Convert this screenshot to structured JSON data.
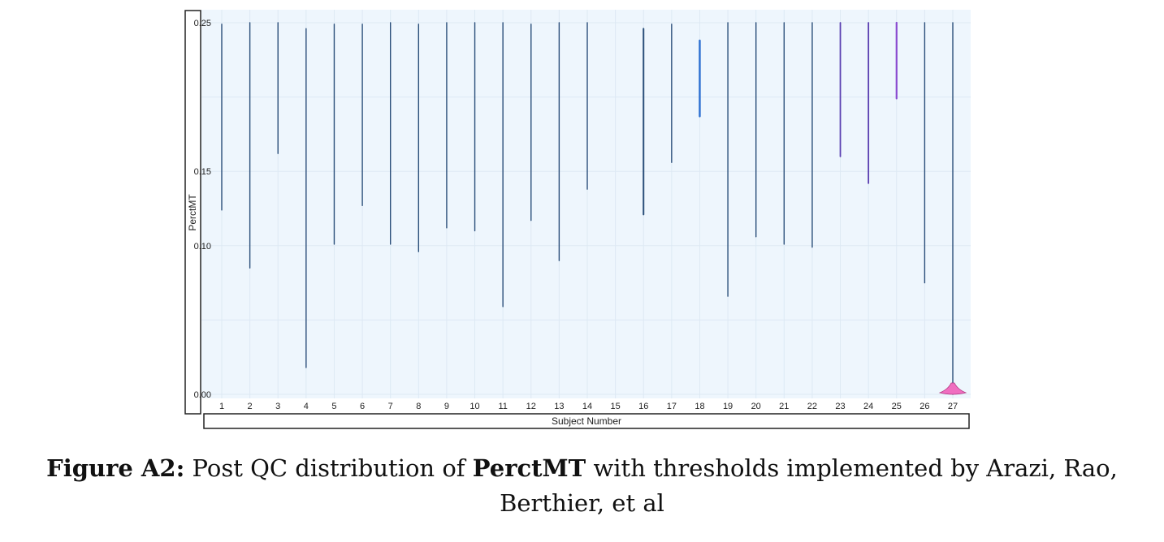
{
  "chart_data": {
    "type": "violin",
    "ylabel": "PerctMT",
    "xlabel": "Subject Number",
    "ylim": [
      0.0,
      0.25
    ],
    "y_ticks": [
      "0.00",
      "0.10",
      "0.15",
      "0.25"
    ],
    "y_tick_values": [
      0.0,
      0.1,
      0.15,
      0.25
    ],
    "grid": true,
    "categories": [
      "1",
      "2",
      "3",
      "4",
      "5",
      "6",
      "7",
      "8",
      "9",
      "10",
      "11",
      "12",
      "13",
      "14",
      "15",
      "16",
      "17",
      "18",
      "19",
      "20",
      "21",
      "22",
      "23",
      "24",
      "25",
      "26",
      "27"
    ],
    "series": [
      {
        "subject": "1",
        "min": 0.124,
        "max": 0.249
      },
      {
        "subject": "2",
        "min": 0.085,
        "max": 0.25
      },
      {
        "subject": "3",
        "min": 0.162,
        "max": 0.25
      },
      {
        "subject": "4",
        "min": 0.018,
        "max": 0.246
      },
      {
        "subject": "5",
        "min": 0.101,
        "max": 0.249
      },
      {
        "subject": "6",
        "min": 0.127,
        "max": 0.249
      },
      {
        "subject": "7",
        "min": 0.101,
        "max": 0.25
      },
      {
        "subject": "8",
        "min": 0.096,
        "max": 0.249
      },
      {
        "subject": "9",
        "min": 0.112,
        "max": 0.25
      },
      {
        "subject": "10",
        "min": 0.11,
        "max": 0.25
      },
      {
        "subject": "11",
        "min": 0.059,
        "max": 0.25
      },
      {
        "subject": "12",
        "min": 0.117,
        "max": 0.249
      },
      {
        "subject": "13",
        "min": 0.09,
        "max": 0.25
      },
      {
        "subject": "14",
        "min": 0.138,
        "max": 0.25
      },
      {
        "subject": "16",
        "min": 0.121,
        "max": 0.246
      },
      {
        "subject": "17",
        "min": 0.156,
        "max": 0.249
      },
      {
        "subject": "18",
        "min": 0.187,
        "max": 0.238
      },
      {
        "subject": "19",
        "min": 0.066,
        "max": 0.25
      },
      {
        "subject": "20",
        "min": 0.106,
        "max": 0.25
      },
      {
        "subject": "21",
        "min": 0.101,
        "max": 0.25
      },
      {
        "subject": "22",
        "min": 0.099,
        "max": 0.25
      },
      {
        "subject": "23",
        "min": 0.16,
        "max": 0.25
      },
      {
        "subject": "24",
        "min": 0.142,
        "max": 0.25
      },
      {
        "subject": "25",
        "min": 0.199,
        "max": 0.25
      },
      {
        "subject": "26",
        "min": 0.075,
        "max": 0.25
      },
      {
        "subject": "27",
        "min": 0.0,
        "max": 0.25
      }
    ],
    "colors": {
      "plot_bg": "#eef6fd",
      "grid": "#dde9f4",
      "line": "#2b4f7a",
      "accent_18": "#2c6fd1",
      "accent_25": "#8a4ad0",
      "accent_27": "#f06ec0",
      "frame": "#222222"
    }
  },
  "caption": {
    "label": "Figure A2:",
    "text_before": " Post QC distribution of ",
    "bold_term": "PerctMT",
    "text_after": " with thresholds implemented by Arazi, Rao, Berthier, et al"
  }
}
